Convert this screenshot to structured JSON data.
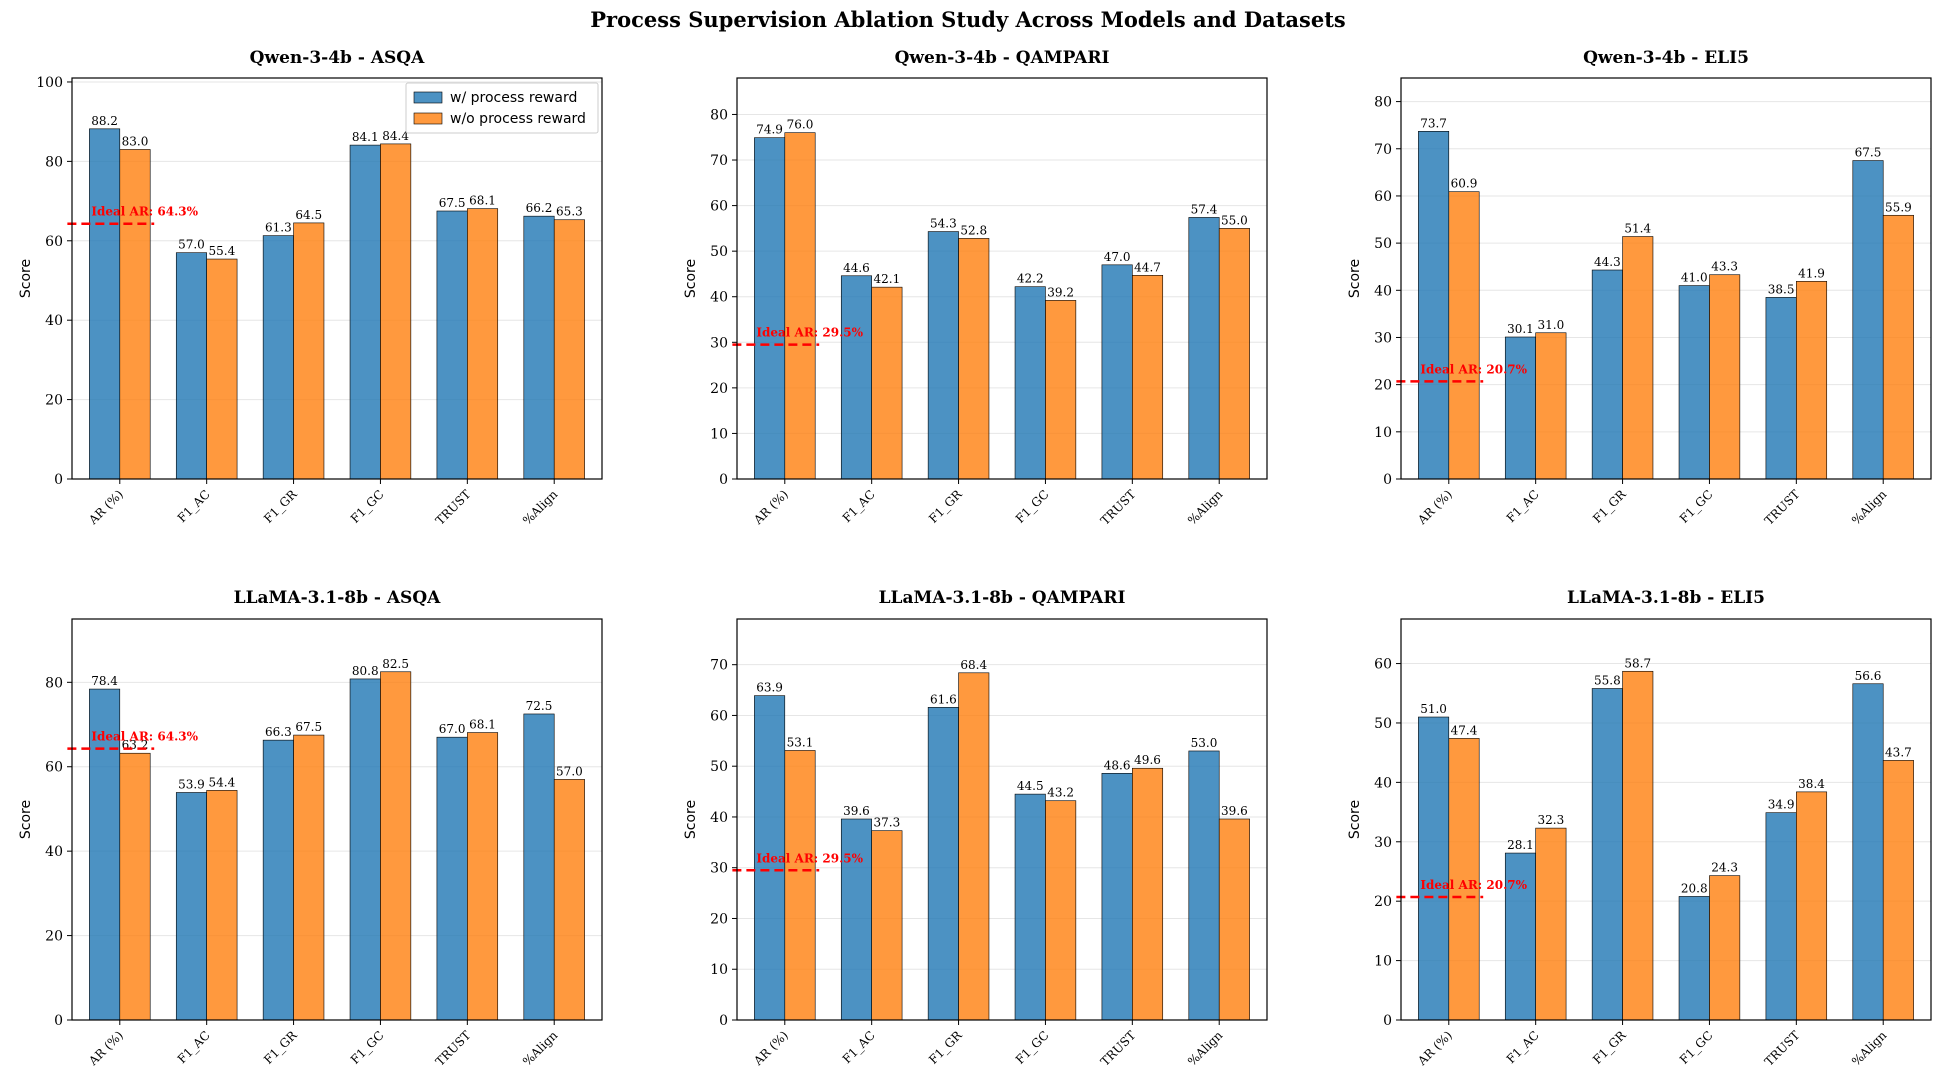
{
  "figure_title": "Process Supervision Ablation Study Across Models and Datasets",
  "legend": [
    "w/ process reward",
    "w/o process reward"
  ],
  "colors": {
    "with": "#1f77b4",
    "without": "#ff7f0e",
    "ideal": "#ff0000",
    "grid": "#e6e6e6"
  },
  "chart_data": [
    {
      "type": "bar",
      "title": "Qwen-3-4b - ASQA",
      "ylabel": "Score",
      "ylim": [
        0,
        101
      ],
      "yticks": [
        0,
        20,
        40,
        60,
        80,
        100
      ],
      "categories": [
        "AR (%)",
        "F1_AC",
        "F1_GR",
        "F1_GC",
        "TRUST",
        "%Align"
      ],
      "series": [
        {
          "name": "w/ process reward",
          "values": [
            88.2,
            57.0,
            61.3,
            84.1,
            67.5,
            66.2
          ]
        },
        {
          "name": "w/o process reward",
          "values": [
            83.0,
            55.4,
            64.5,
            84.4,
            68.1,
            65.3
          ]
        }
      ],
      "ideal": {
        "value": 64.3,
        "label": "Ideal AR: 64.3%"
      },
      "legend": true
    },
    {
      "type": "bar",
      "title": "Qwen-3-4b - QAMPARI",
      "ylabel": "Score",
      "ylim": [
        0,
        88
      ],
      "yticks": [
        0,
        10,
        20,
        30,
        40,
        50,
        60,
        70,
        80
      ],
      "categories": [
        "AR (%)",
        "F1_AC",
        "F1_GR",
        "F1_GC",
        "TRUST",
        "%Align"
      ],
      "series": [
        {
          "name": "w/ process reward",
          "values": [
            74.9,
            44.6,
            54.3,
            42.2,
            47.0,
            57.4
          ]
        },
        {
          "name": "w/o process reward",
          "values": [
            76.0,
            42.1,
            52.8,
            39.2,
            44.7,
            55.0
          ]
        }
      ],
      "ideal": {
        "value": 29.5,
        "label": "Ideal AR: 29.5%"
      },
      "legend": false
    },
    {
      "type": "bar",
      "title": "Qwen-3-4b - ELI5",
      "ylabel": "Score",
      "ylim": [
        0,
        85
      ],
      "yticks": [
        0,
        10,
        20,
        30,
        40,
        50,
        60,
        70,
        80
      ],
      "categories": [
        "AR (%)",
        "F1_AC",
        "F1_GR",
        "F1_GC",
        "TRUST",
        "%Align"
      ],
      "series": [
        {
          "name": "w/ process reward",
          "values": [
            73.7,
            30.1,
            44.3,
            41.0,
            38.5,
            67.5
          ]
        },
        {
          "name": "w/o process reward",
          "values": [
            60.9,
            31.0,
            51.4,
            43.3,
            41.9,
            55.9
          ]
        }
      ],
      "ideal": {
        "value": 20.7,
        "label": "Ideal AR: 20.7%"
      },
      "legend": false
    },
    {
      "type": "bar",
      "title": "LLaMA-3.1-8b - ASQA",
      "ylabel": "Score",
      "ylim": [
        0,
        95
      ],
      "yticks": [
        0,
        20,
        40,
        60,
        80
      ],
      "categories": [
        "AR (%)",
        "F1_AC",
        "F1_GR",
        "F1_GC",
        "TRUST",
        "%Align"
      ],
      "series": [
        {
          "name": "w/ process reward",
          "values": [
            78.4,
            53.9,
            66.3,
            80.8,
            67.0,
            72.5
          ]
        },
        {
          "name": "w/o process reward",
          "values": [
            63.2,
            54.4,
            67.5,
            82.5,
            68.1,
            57.0
          ]
        }
      ],
      "ideal": {
        "value": 64.3,
        "label": "Ideal AR: 64.3%"
      },
      "legend": false
    },
    {
      "type": "bar",
      "title": "LLaMA-3.1-8b - QAMPARI",
      "ylabel": "Score",
      "ylim": [
        0,
        79
      ],
      "yticks": [
        0,
        10,
        20,
        30,
        40,
        50,
        60,
        70
      ],
      "categories": [
        "AR (%)",
        "F1_AC",
        "F1_GR",
        "F1_GC",
        "TRUST",
        "%Align"
      ],
      "series": [
        {
          "name": "w/ process reward",
          "values": [
            63.9,
            39.6,
            61.6,
            44.5,
            48.6,
            53.0
          ]
        },
        {
          "name": "w/o process reward",
          "values": [
            53.1,
            37.3,
            68.4,
            43.2,
            49.6,
            39.6
          ]
        }
      ],
      "ideal": {
        "value": 29.5,
        "label": "Ideal AR: 29.5%"
      },
      "legend": false
    },
    {
      "type": "bar",
      "title": "LLaMA-3.1-8b - ELI5",
      "ylabel": "Score",
      "ylim": [
        0,
        67.5
      ],
      "yticks": [
        0,
        10,
        20,
        30,
        40,
        50,
        60
      ],
      "categories": [
        "AR (%)",
        "F1_AC",
        "F1_GR",
        "F1_GC",
        "TRUST",
        "%Align"
      ],
      "series": [
        {
          "name": "w/ process reward",
          "values": [
            51.0,
            28.1,
            55.8,
            20.8,
            34.9,
            56.6
          ]
        },
        {
          "name": "w/o process reward",
          "values": [
            47.4,
            32.3,
            58.7,
            24.3,
            38.4,
            43.7
          ]
        }
      ],
      "ideal": {
        "value": 20.7,
        "label": "Ideal AR: 20.7%"
      },
      "legend": false
    }
  ]
}
